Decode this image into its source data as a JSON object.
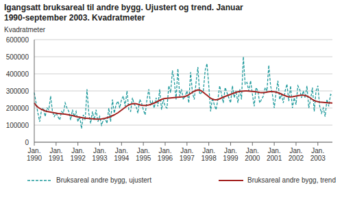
{
  "chart_data": {
    "type": "line",
    "title": "Igangsatt bruksareal til andre bygg. Ujustert og trend. Januar 1990-september 2003. Kvadratmeter",
    "y_label": "Kvadratmeter",
    "categories": [
      "Jan. 1990",
      null,
      null,
      null,
      null,
      null,
      null,
      null,
      null,
      null,
      null,
      null,
      "Jan. 1991",
      null,
      null,
      null,
      null,
      null,
      null,
      null,
      null,
      null,
      null,
      null,
      "Jan. 1992",
      null,
      null,
      null,
      null,
      null,
      null,
      null,
      null,
      null,
      null,
      null,
      "Jan. 1993",
      null,
      null,
      null,
      null,
      null,
      null,
      null,
      null,
      null,
      null,
      null,
      "Jan. 1994",
      null,
      null,
      null,
      null,
      null,
      null,
      null,
      null,
      null,
      null,
      null,
      "Jan. 1995",
      null,
      null,
      null,
      null,
      null,
      null,
      null,
      null,
      null,
      null,
      null,
      "Jan. 1996",
      null,
      null,
      null,
      null,
      null,
      null,
      null,
      null,
      null,
      null,
      null,
      "Jan. 1997",
      null,
      null,
      null,
      null,
      null,
      null,
      null,
      null,
      null,
      null,
      null,
      "Jan. 1998",
      null,
      null,
      null,
      null,
      null,
      null,
      null,
      null,
      null,
      null,
      null,
      "Jan. 1999",
      null,
      null,
      null,
      null,
      null,
      null,
      null,
      null,
      null,
      null,
      null,
      "Jan. 2000",
      null,
      null,
      null,
      null,
      null,
      null,
      null,
      null,
      null,
      null,
      null,
      "Jan. 2001",
      null,
      null,
      null,
      null,
      null,
      null,
      null,
      null,
      null,
      null,
      null,
      "Jan. 2002",
      null,
      null,
      null,
      null,
      null,
      null,
      null,
      null,
      null,
      null,
      null,
      "Jan. 2003",
      null,
      null,
      null,
      null,
      null,
      null,
      null,
      null
    ],
    "series": [
      {
        "name": "Bruksareal andre bygg, ujustert",
        "color": "#1f9a9c",
        "line_style": "dashed",
        "values": [
          290000,
          230000,
          170000,
          120000,
          190000,
          200000,
          150000,
          200000,
          190000,
          270000,
          180000,
          150000,
          170000,
          150000,
          130000,
          180000,
          170000,
          230000,
          200000,
          180000,
          130000,
          190000,
          150000,
          180000,
          120000,
          150000,
          80000,
          160000,
          130000,
          310000,
          170000,
          110000,
          180000,
          130000,
          190000,
          120000,
          150000,
          100000,
          130000,
          140000,
          110000,
          200000,
          120000,
          250000,
          170000,
          220000,
          240000,
          200000,
          250000,
          270000,
          210000,
          300000,
          190000,
          180000,
          260000,
          220000,
          210000,
          170000,
          250000,
          230000,
          190000,
          160000,
          250000,
          310000,
          220000,
          240000,
          200000,
          260000,
          210000,
          310000,
          190000,
          250000,
          210000,
          200000,
          330000,
          290000,
          420000,
          360000,
          250000,
          430000,
          270000,
          310000,
          250000,
          270000,
          300000,
          230000,
          410000,
          290000,
          250000,
          350000,
          440000,
          280000,
          290000,
          300000,
          420000,
          460000,
          330000,
          180000,
          260000,
          220000,
          190000,
          250000,
          330000,
          280000,
          230000,
          320000,
          290000,
          260000,
          230000,
          330000,
          260000,
          300000,
          230000,
          310000,
          250000,
          500000,
          340000,
          350000,
          300000,
          360000,
          280000,
          210000,
          320000,
          300000,
          230000,
          250000,
          270000,
          320000,
          300000,
          450000,
          330000,
          280000,
          200000,
          290000,
          360000,
          250000,
          280000,
          230000,
          300000,
          340000,
          240000,
          330000,
          200000,
          260000,
          220000,
          330000,
          310000,
          260000,
          300000,
          260000,
          330000,
          200000,
          250000,
          320000,
          180000,
          300000,
          330000,
          210000,
          170000,
          200000,
          150000,
          250000,
          210000,
          280000,
          270000
        ]
      },
      {
        "name": "Bruksareal andre bygg, trend",
        "color": "#a3201e",
        "line_style": "solid",
        "values": [
          230000,
          215000,
          205000,
          198000,
          192000,
          188000,
          183000,
          180000,
          178000,
          176000,
          174000,
          172000,
          170000,
          168000,
          167000,
          166000,
          165000,
          164000,
          162000,
          160000,
          158000,
          156000,
          153000,
          150000,
          148000,
          146000,
          144000,
          142000,
          140000,
          140000,
          139000,
          138000,
          137000,
          136000,
          135000,
          135000,
          135000,
          136000,
          138000,
          140000,
          143000,
          146000,
          150000,
          155000,
          160000,
          166000,
          172000,
          180000,
          188000,
          196000,
          204000,
          212000,
          218000,
          222000,
          225000,
          226000,
          225000,
          222000,
          219000,
          216000,
          215000,
          215000,
          216000,
          218000,
          221000,
          225000,
          229000,
          234000,
          240000,
          245000,
          250000,
          254000,
          256000,
          257000,
          258000,
          259000,
          260000,
          261000,
          262000,
          263000,
          264000,
          265000,
          266000,
          268000,
          272000,
          278000,
          285000,
          292000,
          298000,
          303000,
          306000,
          305000,
          300000,
          292000,
          283000,
          275000,
          266000,
          258000,
          252000,
          249000,
          248000,
          250000,
          254000,
          259000,
          264000,
          268000,
          272000,
          276000,
          280000,
          284000,
          288000,
          292000,
          295000,
          297000,
          298000,
          299000,
          300000,
          300000,
          299000,
          298000,
          297000,
          296000,
          295000,
          293000,
          291000,
          290000,
          290000,
          291000,
          293000,
          295000,
          296000,
          296000,
          295000,
          293000,
          290000,
          286000,
          281000,
          276000,
          272000,
          268000,
          266000,
          265000,
          266000,
          268000,
          270000,
          272000,
          274000,
          275000,
          275000,
          273000,
          270000,
          265000,
          258000,
          250000,
          244000,
          240000,
          237000,
          235000,
          234000,
          233000,
          232000,
          231000,
          230000,
          230000,
          229000
        ]
      }
    ],
    "ylim": [
      0,
      600000
    ],
    "yticks": [
      0,
      100000,
      200000,
      300000,
      400000,
      500000,
      600000
    ],
    "grid": true,
    "legend": "bottom"
  }
}
